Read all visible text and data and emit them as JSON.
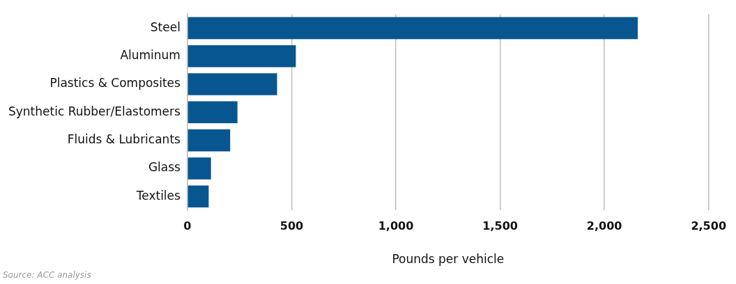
{
  "chart_data": {
    "type": "bar",
    "orientation": "horizontal",
    "xlabel": "Pounds per vehicle",
    "categories": [
      "Steel",
      "Aluminum",
      "Plastics & Composites",
      "Synthetic Rubber/Elastomers",
      "Fluids & Lubricants",
      "Glass",
      "Textiles"
    ],
    "values": [
      2160,
      520,
      430,
      240,
      205,
      113,
      102
    ],
    "color": "#08568f",
    "xlim": [
      0,
      2500
    ],
    "xticks": [
      {
        "value": 0,
        "label": "0"
      },
      {
        "value": 500,
        "label": "500"
      },
      {
        "value": 1000,
        "label": "1,000"
      },
      {
        "value": 1500,
        "label": "1,500"
      },
      {
        "value": 2000,
        "label": "2,000"
      },
      {
        "value": 2500,
        "label": "2,500"
      }
    ],
    "grid": "x",
    "annotations": [
      "Source: ACC analysis"
    ]
  }
}
